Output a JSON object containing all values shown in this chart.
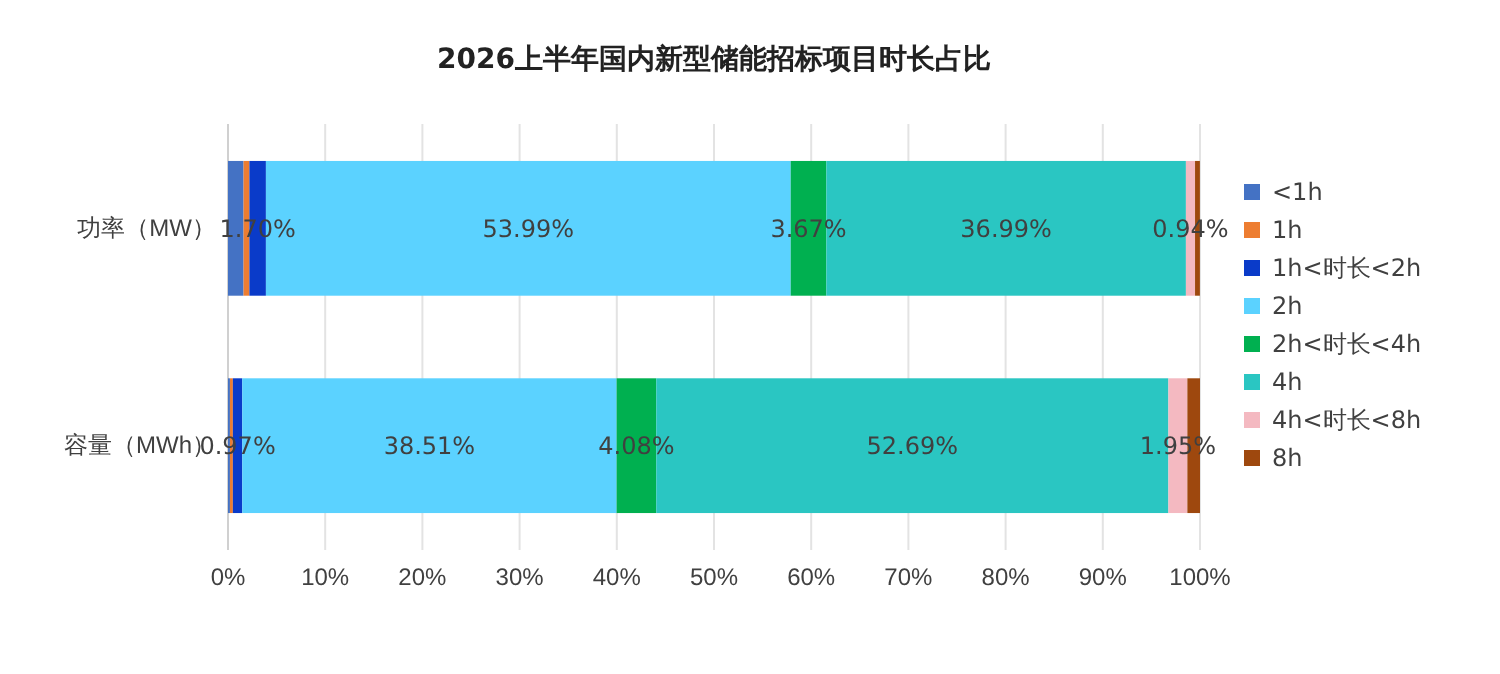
{
  "chart_data": {
    "type": "bar",
    "orientation": "horizontal",
    "stacked": true,
    "title": "2026上半年国内新型储能招标项目时长占比",
    "categories": [
      "功率（MW）",
      "容量（MWh）"
    ],
    "series": [
      {
        "name": "<1h",
        "color": "#4472c4",
        "values": [
          1.6,
          0.2
        ],
        "value_labels": [
          null,
          null
        ]
      },
      {
        "name": "1h",
        "color": "#ed7d31",
        "values": [
          0.6,
          0.3
        ],
        "value_labels": [
          null,
          null
        ]
      },
      {
        "name": "1h<时长<2h",
        "color": "#0a3bc9",
        "values": [
          1.7,
          0.97
        ],
        "value_labels": [
          "1.70%",
          "0.97%"
        ]
      },
      {
        "name": "2h",
        "color": "#5bd2ff",
        "values": [
          53.99,
          38.51
        ],
        "value_labels": [
          "53.99%",
          "38.51%"
        ]
      },
      {
        "name": "2h<时长<4h",
        "color": "#00b050",
        "values": [
          3.67,
          4.08
        ],
        "value_labels": [
          "3.67%",
          "4.08%"
        ]
      },
      {
        "name": "4h",
        "color": "#2ac6c2",
        "values": [
          36.99,
          52.69
        ],
        "value_labels": [
          "36.99%",
          "52.69%"
        ]
      },
      {
        "name": "4h<时长<8h",
        "color": "#f4b9c1",
        "values": [
          0.94,
          1.95
        ],
        "value_labels": [
          "0.94%",
          "1.95%"
        ]
      },
      {
        "name": "8h",
        "color": "#9e480e",
        "values": [
          0.5,
          1.3
        ],
        "value_labels": [
          null,
          null
        ]
      }
    ],
    "xlim": [
      0,
      100
    ],
    "xticks": [
      {
        "value": 0,
        "label": "0%"
      },
      {
        "value": 10,
        "label": "10%"
      },
      {
        "value": 20,
        "label": "20%"
      },
      {
        "value": 30,
        "label": "30%"
      },
      {
        "value": 40,
        "label": "40%"
      },
      {
        "value": 50,
        "label": "50%"
      },
      {
        "value": 60,
        "label": "60%"
      },
      {
        "value": 70,
        "label": "70%"
      },
      {
        "value": 80,
        "label": "80%"
      },
      {
        "value": 90,
        "label": "90%"
      },
      {
        "value": 100,
        "label": "100%"
      }
    ],
    "grid": "x",
    "legend": "right"
  }
}
